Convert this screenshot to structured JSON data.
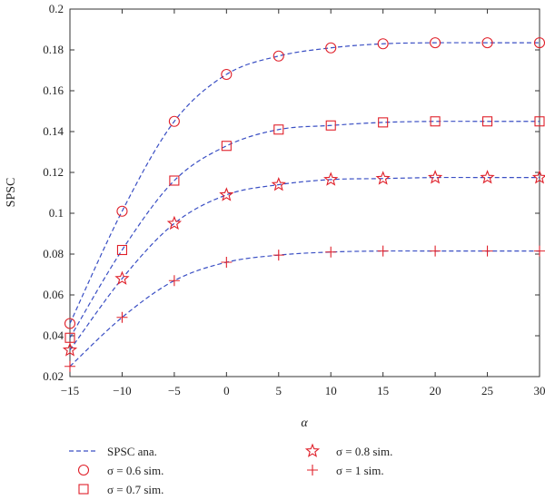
{
  "chart_data": {
    "type": "line",
    "title": "",
    "xlabel": "α",
    "ylabel": "SPSC",
    "xlim": [
      -15,
      30
    ],
    "ylim": [
      0.02,
      0.2
    ],
    "grid": false,
    "legend_position": "bottom",
    "x": [
      -15,
      -10,
      -5,
      0,
      5,
      10,
      15,
      20,
      25,
      30
    ],
    "x_ticks": [
      "−15",
      "−10",
      "−5",
      "0",
      "5",
      "10",
      "15",
      "20",
      "25",
      "30"
    ],
    "y_ticks": [
      "0.02",
      "0.04",
      "0.06",
      "0.08",
      "0.1",
      "0.12",
      "0.14",
      "0.16",
      "0.18",
      "0.2"
    ],
    "analytic": {
      "name": "SPSC ana.",
      "color": "#3a4fc4",
      "curves": [
        [
          0.046,
          0.101,
          0.145,
          0.168,
          0.177,
          0.181,
          0.183,
          0.1835,
          0.1835,
          0.1835
        ],
        [
          0.039,
          0.082,
          0.116,
          0.133,
          0.141,
          0.143,
          0.1445,
          0.145,
          0.145,
          0.145
        ],
        [
          0.033,
          0.068,
          0.095,
          0.109,
          0.114,
          0.1165,
          0.117,
          0.1175,
          0.1175,
          0.1175
        ],
        [
          0.025,
          0.049,
          0.067,
          0.076,
          0.0795,
          0.081,
          0.0815,
          0.0815,
          0.0815,
          0.0815
        ]
      ]
    },
    "series": [
      {
        "name": "σ = 0.6 sim.",
        "marker": "circle",
        "color": "#e0202a",
        "values": [
          0.046,
          0.101,
          0.145,
          0.168,
          0.177,
          0.181,
          0.183,
          0.1835,
          0.1835,
          0.1835
        ]
      },
      {
        "name": "σ = 0.7 sim.",
        "marker": "square",
        "color": "#e0202a",
        "values": [
          0.039,
          0.082,
          0.116,
          0.133,
          0.141,
          0.143,
          0.1445,
          0.145,
          0.145,
          0.145
        ]
      },
      {
        "name": "σ = 0.8 sim.",
        "marker": "star",
        "color": "#e0202a",
        "values": [
          0.033,
          0.068,
          0.095,
          0.109,
          0.114,
          0.1165,
          0.117,
          0.1175,
          0.1175,
          0.1175
        ]
      },
      {
        "name": "σ = 1 sim.",
        "marker": "plus",
        "color": "#e0202a",
        "values": [
          0.025,
          0.049,
          0.067,
          0.076,
          0.0795,
          0.081,
          0.0815,
          0.0815,
          0.0815,
          0.0815
        ]
      }
    ]
  }
}
